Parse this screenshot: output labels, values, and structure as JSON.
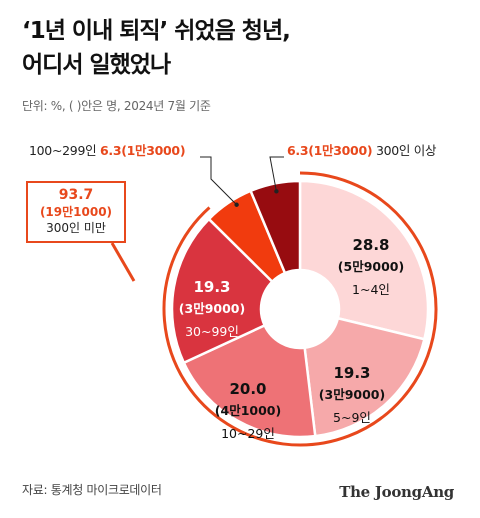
{
  "header": {
    "title_line1": "‘1년 이내 퇴직’ 쉬었음 청년,",
    "title_line2": "어디서 일했었나",
    "unit_note": "단위: %, ( )안은 명, 2024년 7월 기준"
  },
  "footer": {
    "source": "자료: 통계청 마이크로데이터",
    "brand": "The JoongAng"
  },
  "colors": {
    "ring": "#e8481c",
    "accent": "#e8481c",
    "slice_1_4": "#fdd7d7",
    "slice_5_9": "#f6a9aa",
    "slice_10_29": "#ee7276",
    "slice_30_99": "#d9343f",
    "slice_100_299": "#f13b0e",
    "slice_300": "#970c10"
  },
  "callouts": {
    "small_firms": {
      "value": "93.7",
      "count": "(19만1000)",
      "label": "300인 미만"
    },
    "s100": {
      "category": "100~299인",
      "text": "6.3(1만3000)"
    },
    "s300": {
      "text": "6.3(1만3000)",
      "category": "300인 이상"
    }
  },
  "chart_data": {
    "type": "pie",
    "title": "‘1년 이내 퇴직’ 쉬었음 청년, 어디서 일했었나",
    "unit": "%",
    "start": "12 o'clock, clockwise",
    "donut": true,
    "slices": [
      {
        "category": "1~4인",
        "value": 28.8,
        "count": "(5만9000)",
        "value_label": "28.8",
        "color": "#fdd7d7",
        "text_color": "#111111"
      },
      {
        "category": "5~9인",
        "value": 19.3,
        "count": "(3만9000)",
        "value_label": "19.3",
        "color": "#f6a9aa",
        "text_color": "#111111"
      },
      {
        "category": "10~29인",
        "value": 20.0,
        "count": "(4만1000)",
        "value_label": "20.0",
        "color": "#ee7276",
        "text_color": "#111111"
      },
      {
        "category": "30~99인",
        "value": 19.3,
        "count": "(3만9000)",
        "value_label": "19.3",
        "color": "#d9343f",
        "text_color": "#ffffff"
      },
      {
        "category": "100~299인",
        "value": 6.3,
        "count": "(1만3000)",
        "color": "#f13b0e"
      },
      {
        "category": "300인 이상",
        "value": 6.3,
        "count": "(1만3000)",
        "color": "#970c10"
      }
    ],
    "group_total": {
      "label": "300인 미만",
      "value": 93.7,
      "count": "(19만1000)"
    }
  }
}
